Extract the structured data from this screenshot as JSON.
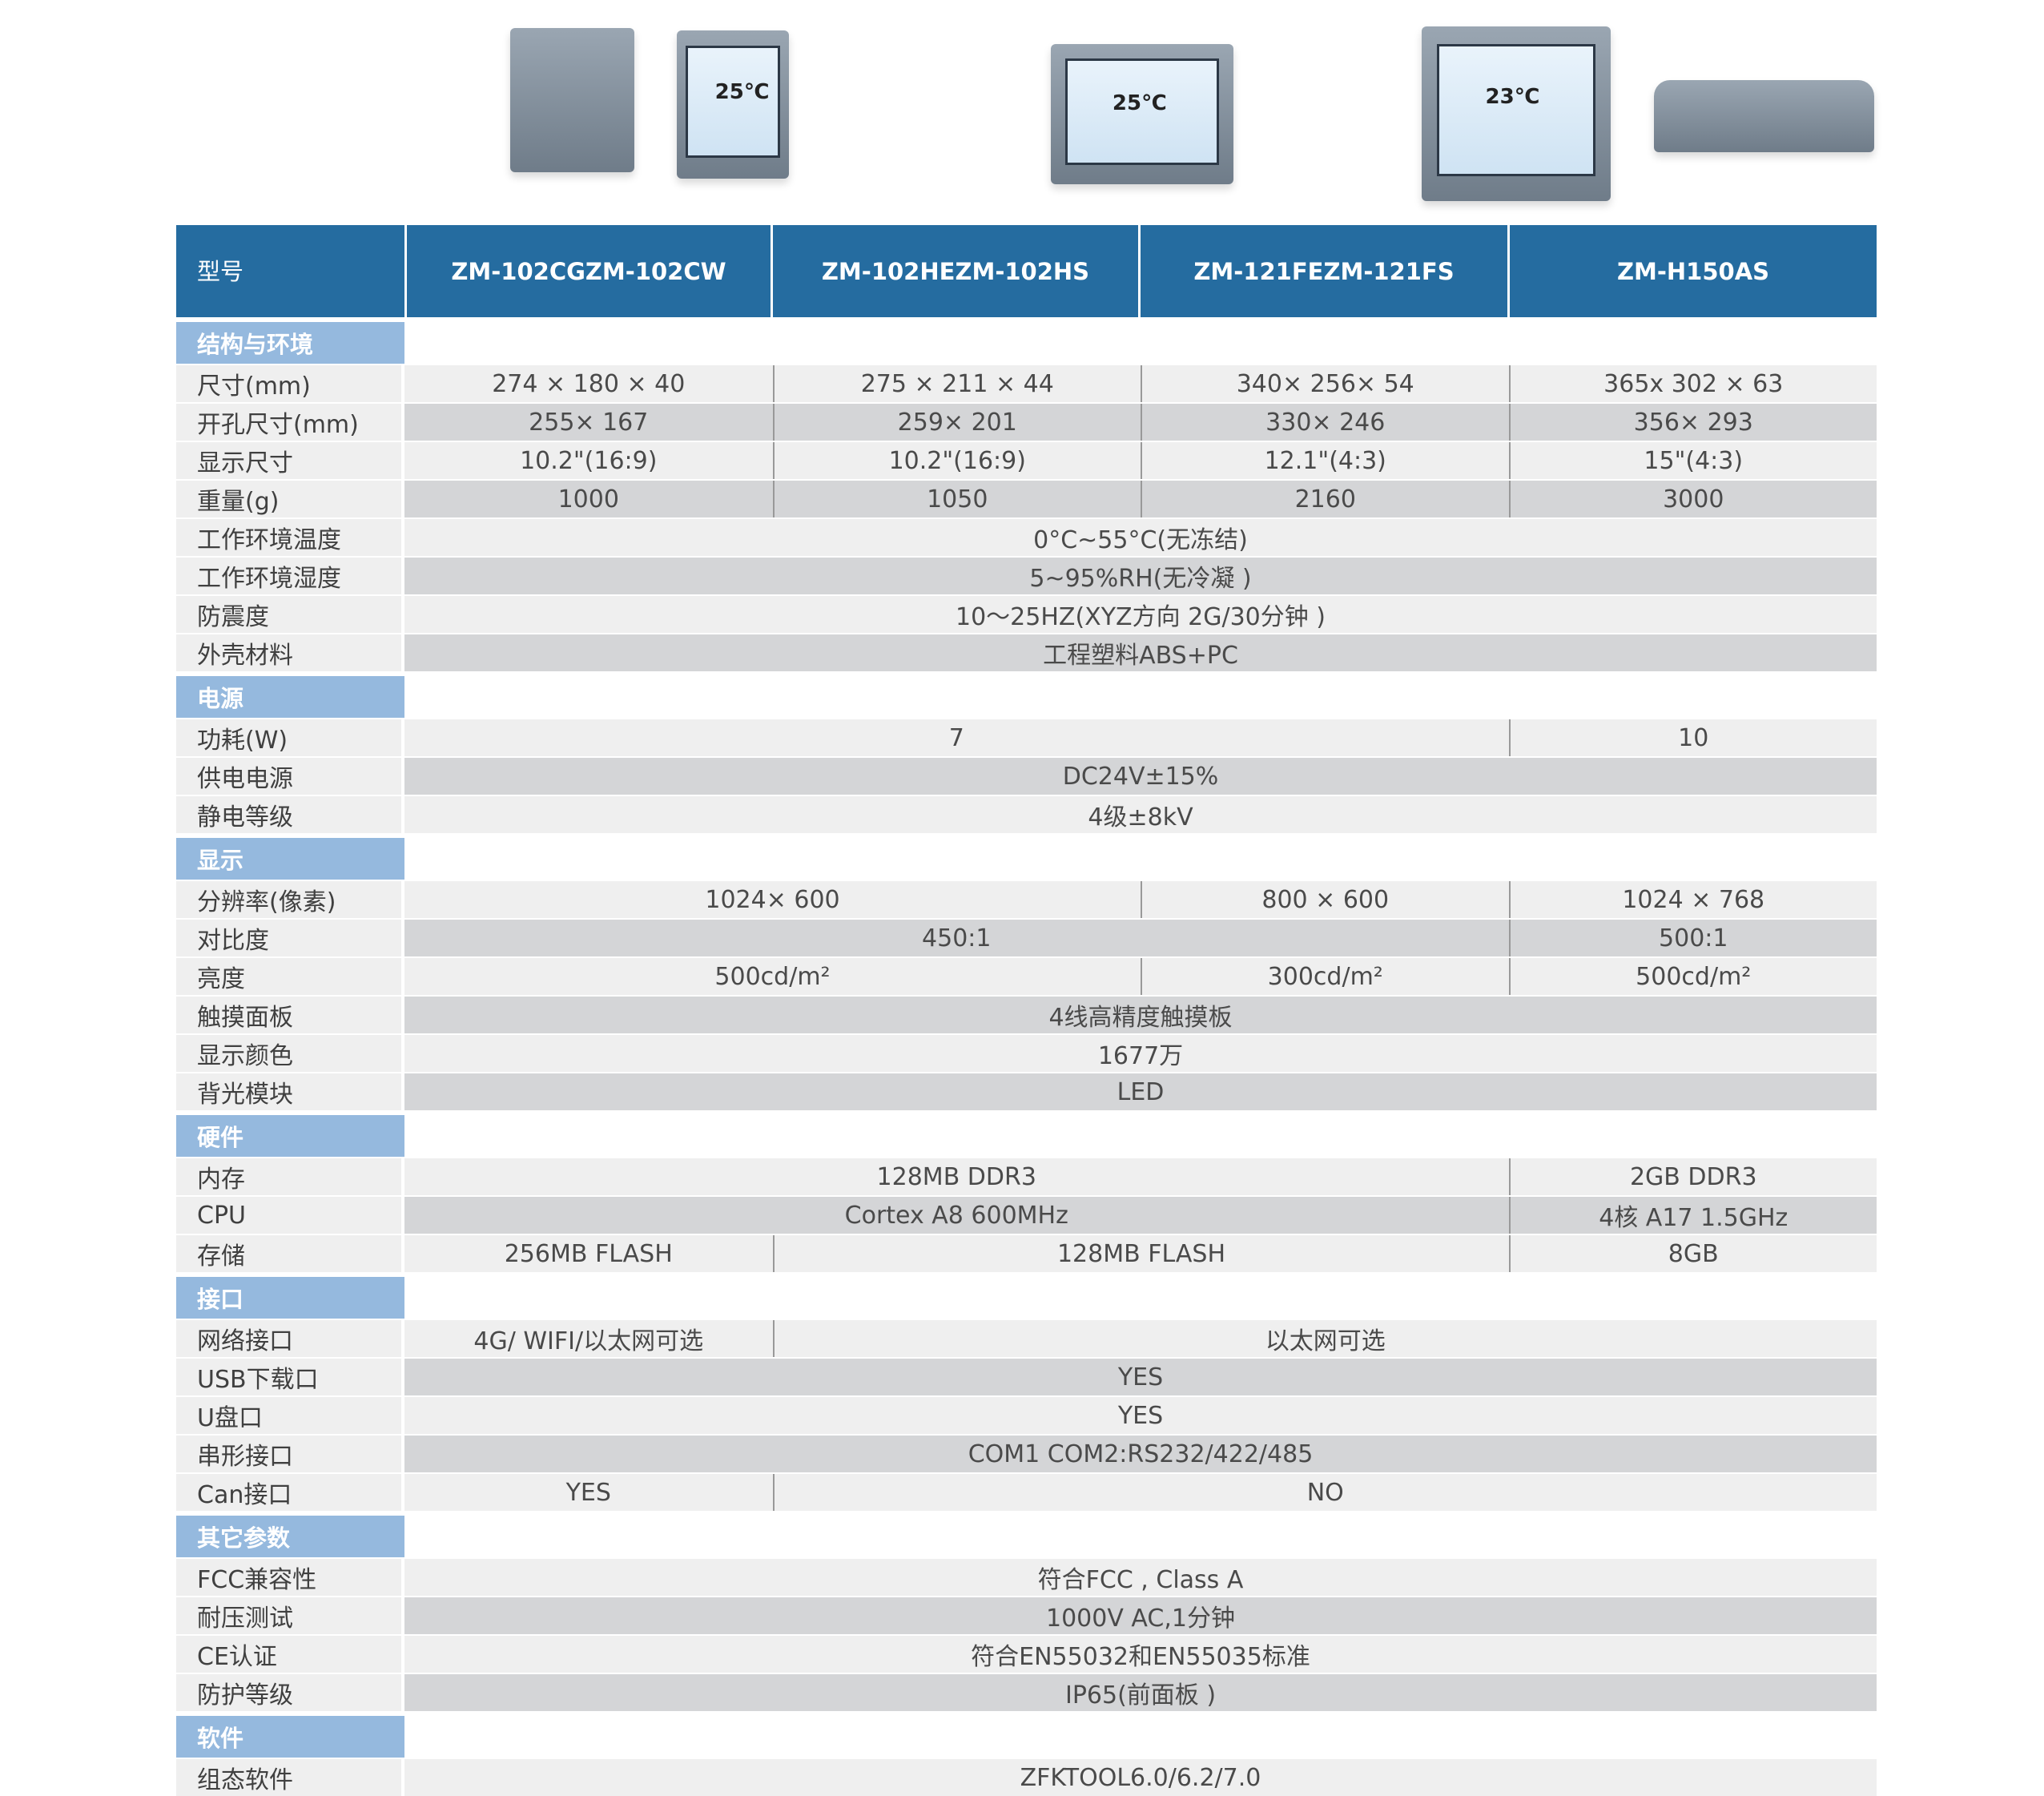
{
  "header": {
    "label": "型号",
    "models": [
      [
        "ZM-102CG",
        "ZM-102CW"
      ],
      [
        "ZM-102HE",
        "ZM-102HS"
      ],
      [
        "ZM-121FE",
        "ZM-121FS"
      ],
      [
        "ZM-H150AS"
      ]
    ]
  },
  "product_images": [
    {
      "screen_value": ""
    },
    {
      "screen_value": "25℃"
    },
    {
      "screen_value": "25℃"
    },
    {
      "screen_value": "23℃"
    },
    {
      "screen_value": ""
    }
  ],
  "colors": {
    "header_bg": "#256ca0",
    "section_bg": "#95b9de",
    "row_light": "#efefef",
    "row_dark": "#d4d5d7"
  },
  "sections": [
    {
      "title": "结构与环境",
      "rows": [
        {
          "label": "尺寸(mm)",
          "cells": [
            {
              "text": "274 × 180 × 40",
              "span": 1
            },
            {
              "text": "275 × 211 × 44",
              "span": 1
            },
            {
              "text": "340× 256× 54",
              "span": 1
            },
            {
              "text": "365x 302 × 63",
              "span": 1
            }
          ]
        },
        {
          "label": "开孔尺寸(mm)",
          "cells": [
            {
              "text": "255× 167",
              "span": 1
            },
            {
              "text": "259× 201",
              "span": 1
            },
            {
              "text": "330× 246",
              "span": 1
            },
            {
              "text": "356× 293",
              "span": 1
            }
          ]
        },
        {
          "label": "显示尺寸",
          "cells": [
            {
              "text": "10.2\"(16:9)",
              "span": 1
            },
            {
              "text": "10.2\"(16:9)",
              "span": 1
            },
            {
              "text": "12.1\"(4:3)",
              "span": 1
            },
            {
              "text": "15\"(4:3)",
              "span": 1
            }
          ]
        },
        {
          "label": "重量(g)",
          "cells": [
            {
              "text": "1000",
              "span": 1
            },
            {
              "text": "1050",
              "span": 1
            },
            {
              "text": "2160",
              "span": 1
            },
            {
              "text": "3000",
              "span": 1
            }
          ]
        },
        {
          "label": "工作环境温度",
          "cells": [
            {
              "text": "0°C~55°C(无冻结)",
              "span": 4
            }
          ]
        },
        {
          "label": "工作环境湿度",
          "cells": [
            {
              "text": "5~95%RH(无冷凝 )",
              "span": 4
            }
          ]
        },
        {
          "label": "防震度",
          "cells": [
            {
              "text": "10～25HZ(XYZ方向 2G/30分钟 )",
              "span": 4
            }
          ]
        },
        {
          "label": "外壳材料",
          "cells": [
            {
              "text": "工程塑料ABS+PC",
              "span": 4
            }
          ]
        }
      ]
    },
    {
      "title": "电源",
      "rows": [
        {
          "label": "功耗(W)",
          "cells": [
            {
              "text": "7",
              "span": 3
            },
            {
              "text": "10",
              "span": 1
            }
          ]
        },
        {
          "label": "供电电源",
          "cells": [
            {
              "text": "DC24V±15%",
              "span": 4
            }
          ]
        },
        {
          "label": "静电等级",
          "cells": [
            {
              "text": "4级±8kV",
              "span": 4
            }
          ]
        }
      ]
    },
    {
      "title": "显示",
      "rows": [
        {
          "label": "分辨率(像素)",
          "cells": [
            {
              "text": "1024× 600",
              "span": 2
            },
            {
              "text": "800 × 600",
              "span": 1
            },
            {
              "text": "1024 × 768",
              "span": 1
            }
          ]
        },
        {
          "label": "对比度",
          "cells": [
            {
              "text": "450:1",
              "span": 3
            },
            {
              "text": "500:1",
              "span": 1
            }
          ]
        },
        {
          "label": "亮度",
          "cells": [
            {
              "text": "500cd/m²",
              "span": 2
            },
            {
              "text": "300cd/m²",
              "span": 1
            },
            {
              "text": "500cd/m²",
              "span": 1
            }
          ]
        },
        {
          "label": "触摸面板",
          "cells": [
            {
              "text": "4线高精度触摸板",
              "span": 4
            }
          ]
        },
        {
          "label": "显示颜色",
          "cells": [
            {
              "text": "1677万",
              "span": 4
            }
          ]
        },
        {
          "label": "背光模块",
          "cells": [
            {
              "text": "LED",
              "span": 4
            }
          ]
        }
      ]
    },
    {
      "title": "硬件",
      "rows": [
        {
          "label": "内存",
          "cells": [
            {
              "text": "128MB DDR3",
              "span": 3
            },
            {
              "text": "2GB DDR3",
              "span": 1
            }
          ]
        },
        {
          "label": "CPU",
          "cells": [
            {
              "text": "Cortex A8 600MHz",
              "span": 3
            },
            {
              "text": "4核 A17 1.5GHz",
              "span": 1
            }
          ]
        },
        {
          "label": "存储",
          "cells": [
            {
              "text": "256MB FLASH",
              "span": 1
            },
            {
              "text": "128MB FLASH",
              "span": 2
            },
            {
              "text": "8GB",
              "span": 1
            }
          ]
        }
      ]
    },
    {
      "title": "接口",
      "rows": [
        {
          "label": "网络接口",
          "cells": [
            {
              "text": "4G/ WIFI/以太网可选",
              "span": 1
            },
            {
              "text": "以太网可选",
              "span": 3
            }
          ]
        },
        {
          "label": "USB下载口",
          "cells": [
            {
              "text": "YES",
              "span": 4
            }
          ]
        },
        {
          "label": "U盘口",
          "cells": [
            {
              "text": "YES",
              "span": 4
            }
          ]
        },
        {
          "label": "串形接口",
          "cells": [
            {
              "text": "COM1 COM2:RS232/422/485",
              "span": 4
            }
          ]
        },
        {
          "label": "Can接口",
          "cells": [
            {
              "text": "YES",
              "span": 1
            },
            {
              "text": "NO",
              "span": 3
            }
          ]
        }
      ]
    },
    {
      "title": "其它参数",
      "rows": [
        {
          "label": "FCC兼容性",
          "cells": [
            {
              "text": "符合FCC , Class A",
              "span": 4
            }
          ]
        },
        {
          "label": "耐压测试",
          "cells": [
            {
              "text": "1000V AC,1分钟",
              "span": 4
            }
          ]
        },
        {
          "label": "CE认证",
          "cells": [
            {
              "text": "符合EN55032和EN55035标准",
              "span": 4
            }
          ]
        },
        {
          "label": "防护等级",
          "cells": [
            {
              "text": "IP65(前面板 )",
              "span": 4
            }
          ]
        }
      ]
    },
    {
      "title": "软件",
      "rows": [
        {
          "label": "组态软件",
          "cells": [
            {
              "text": "ZFKTOOL6.0/6.2/7.0",
              "span": 4
            }
          ]
        }
      ]
    }
  ]
}
